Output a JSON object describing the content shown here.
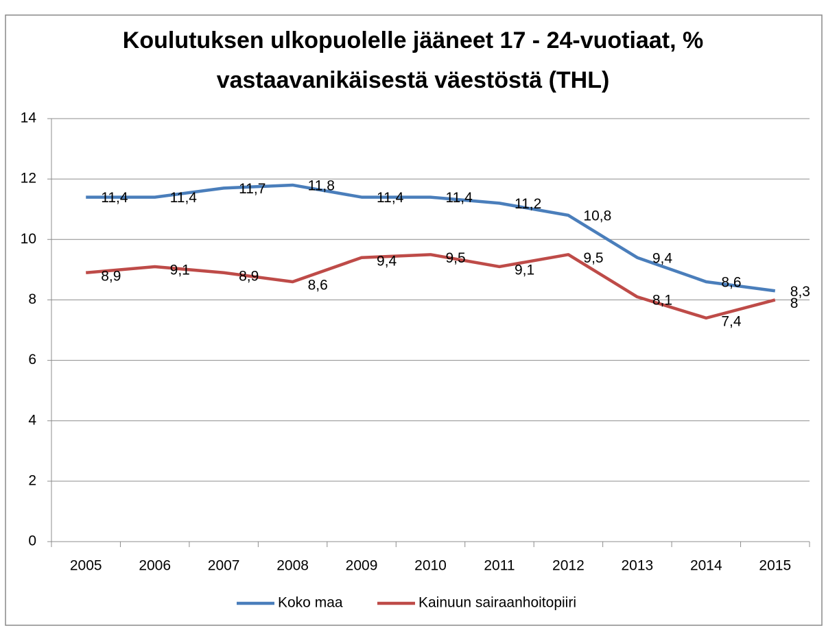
{
  "chart_data": {
    "type": "line",
    "title": "Koulutuksen ulkopuolelle jääneet 17 - 24-vuotiaat, % vastaavanikäisestä väestöstä (THL)",
    "categories": [
      "2005",
      "2006",
      "2007",
      "2008",
      "2009",
      "2010",
      "2011",
      "2012",
      "2013",
      "2014",
      "2015"
    ],
    "series": [
      {
        "name": "Koko maa",
        "color": "#4a7ebb",
        "values": [
          11.4,
          11.4,
          11.7,
          11.8,
          11.4,
          11.4,
          11.2,
          10.8,
          9.4,
          8.6,
          8.3
        ],
        "value_labels": [
          "11,4",
          "11,4",
          "11,7",
          "11,8",
          "11,4",
          "11,4",
          "11,2",
          "10,8",
          "9,4",
          "8,6",
          "8,3"
        ]
      },
      {
        "name": "Kainuun sairaanhoitopiiri",
        "color": "#be4b48",
        "values": [
          8.9,
          9.1,
          8.9,
          8.6,
          9.4,
          9.5,
          9.1,
          9.5,
          8.1,
          7.4,
          8
        ],
        "value_labels": [
          "8,9",
          "9,1",
          "8,9",
          "8,6",
          "9,4",
          "9,5",
          "9,1",
          "9,5",
          "8,1",
          "7,4",
          "8"
        ]
      }
    ],
    "ylim": [
      0,
      14
    ],
    "yticks": [
      0,
      2,
      4,
      6,
      8,
      10,
      12,
      14
    ],
    "grid": true,
    "legend": "bottom"
  }
}
